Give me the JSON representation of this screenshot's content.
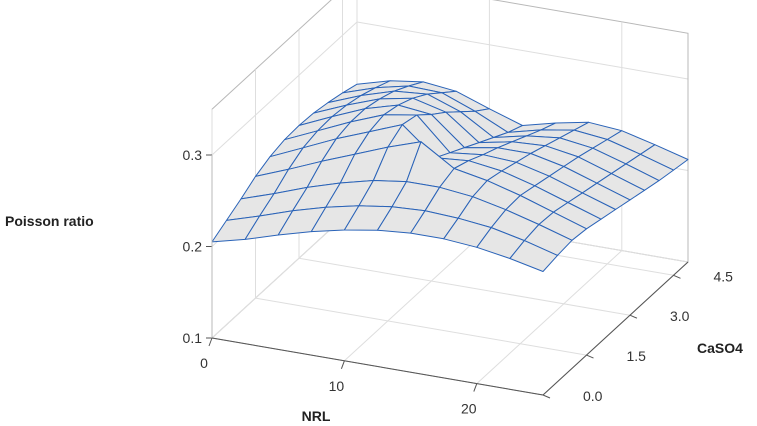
{
  "chart_data": {
    "type": "surface",
    "xlabel": "NRL",
    "ylabel": "CaSO4",
    "zlabel": "Poisson ratio",
    "x_ticks": [
      "0",
      "10",
      "20"
    ],
    "y_ticks": [
      "0.0",
      "1.5",
      "3.0",
      "4.5"
    ],
    "z_ticks": [
      "0.1",
      "0.2",
      "0.3"
    ],
    "x_values": [
      0,
      2.5,
      5,
      7.5,
      10,
      12.5,
      15,
      17.5,
      20,
      22.5,
      25
    ],
    "y_values": [
      0,
      0.5,
      1,
      1.5,
      2,
      2.5,
      3,
      3.5,
      4,
      4.5,
      5
    ],
    "z_values": [
      [
        0.205,
        0.214,
        0.225,
        0.235,
        0.243,
        0.249,
        0.252,
        0.252,
        0.249,
        0.243,
        0.235
      ],
      [
        0.214,
        0.225,
        0.237,
        0.247,
        0.255,
        0.26,
        0.262,
        0.26,
        0.256,
        0.248,
        0.238
      ],
      [
        0.223,
        0.235,
        0.248,
        0.259,
        0.268,
        0.273,
        0.273,
        0.269,
        0.261,
        0.251,
        0.24
      ],
      [
        0.233,
        0.247,
        0.262,
        0.276,
        0.29,
        0.302,
        0.279,
        0.272,
        0.262,
        0.25,
        0.238
      ],
      [
        0.24,
        0.256,
        0.272,
        0.286,
        0.3,
        0.27,
        0.273,
        0.268,
        0.258,
        0.246,
        0.234
      ],
      [
        0.244,
        0.26,
        0.276,
        0.29,
        0.296,
        0.261,
        0.265,
        0.263,
        0.254,
        0.242,
        0.23
      ],
      [
        0.245,
        0.261,
        0.276,
        0.286,
        0.282,
        0.252,
        0.258,
        0.258,
        0.25,
        0.238,
        0.226
      ],
      [
        0.244,
        0.259,
        0.272,
        0.279,
        0.27,
        0.243,
        0.25,
        0.252,
        0.246,
        0.234,
        0.222
      ],
      [
        0.241,
        0.255,
        0.266,
        0.269,
        0.256,
        0.234,
        0.242,
        0.246,
        0.241,
        0.23,
        0.218
      ],
      [
        0.237,
        0.249,
        0.257,
        0.256,
        0.242,
        0.225,
        0.234,
        0.24,
        0.236,
        0.226,
        0.215
      ],
      [
        0.232,
        0.242,
        0.247,
        0.243,
        0.23,
        0.218,
        0.227,
        0.234,
        0.231,
        0.222,
        0.212
      ]
    ],
    "xlim": [
      0,
      25
    ],
    "ylim": [
      0,
      5
    ],
    "zlim": [
      0.1,
      0.35
    ],
    "grid": true,
    "colors": {
      "mesh": "#2a63b8",
      "fill": "#e6e6e6",
      "box": "#b8b8b8",
      "grid": "#dedede"
    }
  }
}
